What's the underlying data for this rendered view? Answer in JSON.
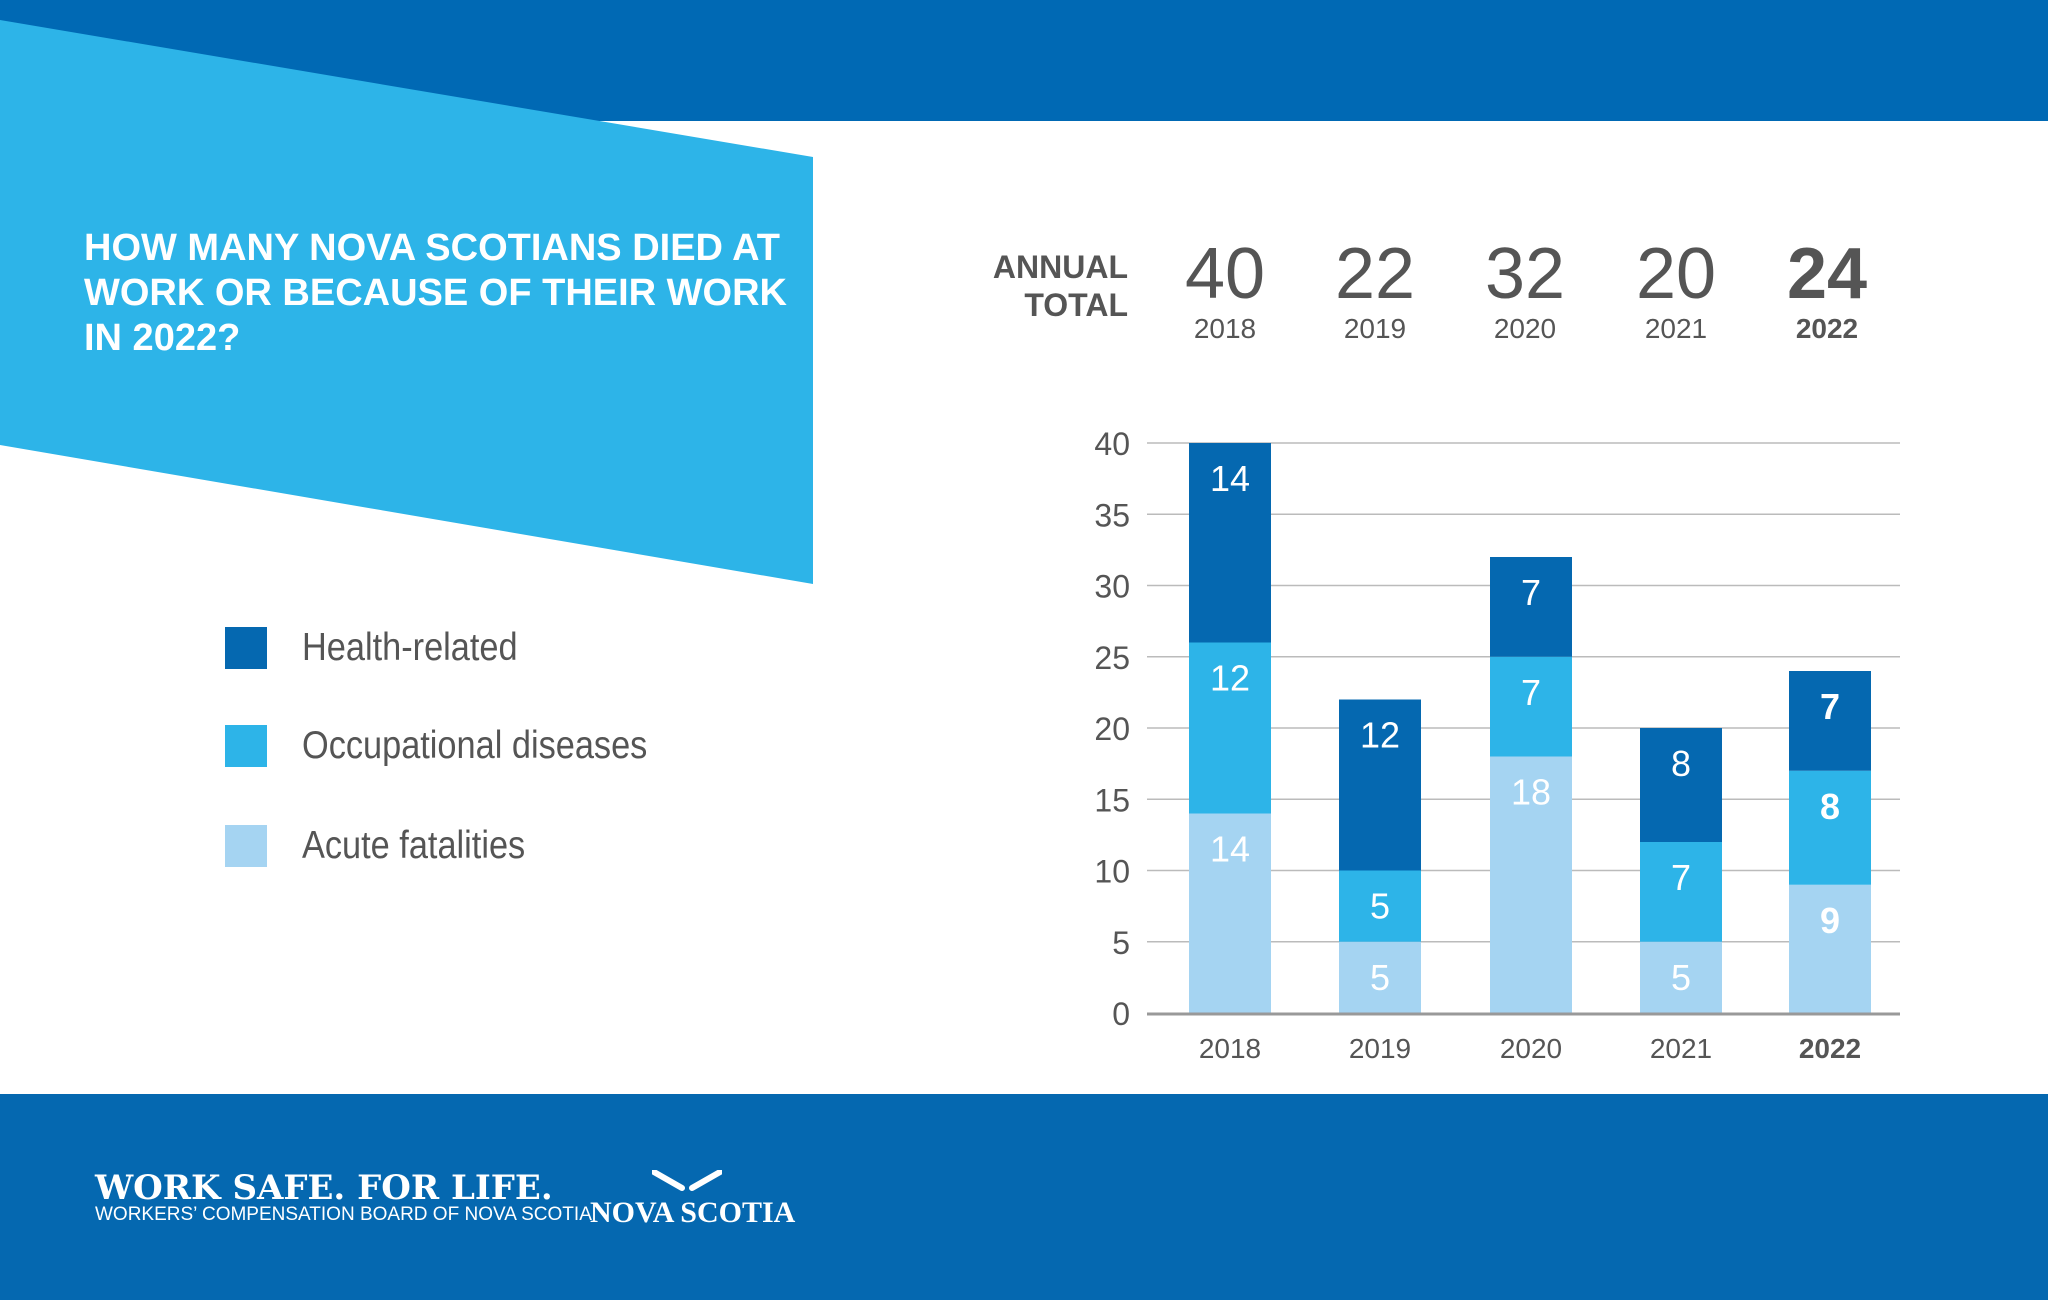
{
  "header": {
    "title": "HOW MANY NOVA SCOTIANS DIED AT WORK OR BECAUSE OF THEIR WORK IN 2022?"
  },
  "colors": {
    "top_bar": "#0069b4",
    "banner": "#2db4e8",
    "health": "#0568b0",
    "occupational": "#2db4e8",
    "acute": "#a5d4f2",
    "footer": "#0568b0"
  },
  "legend": [
    {
      "label": "Health-related",
      "color": "#0568b0"
    },
    {
      "label": "Occupational diseases",
      "color": "#2db4e8"
    },
    {
      "label": "Acute fatalities",
      "color": "#a5d4f2"
    }
  ],
  "annual_total": {
    "label_line1": "ANNUAL",
    "label_line2": "TOTAL",
    "items": [
      {
        "total": "40",
        "year": "2018"
      },
      {
        "total": "22",
        "year": "2019"
      },
      {
        "total": "32",
        "year": "2020"
      },
      {
        "total": "20",
        "year": "2021"
      },
      {
        "total": "24",
        "year": "2022"
      }
    ]
  },
  "chart_data": {
    "type": "bar",
    "stacked": true,
    "categories": [
      "2018",
      "2019",
      "2020",
      "2021",
      "2022"
    ],
    "series": [
      {
        "name": "Acute fatalities",
        "color": "#a5d4f2",
        "values": [
          14,
          5,
          18,
          5,
          9
        ]
      },
      {
        "name": "Occupational diseases",
        "color": "#2db4e8",
        "values": [
          12,
          5,
          7,
          7,
          8
        ]
      },
      {
        "name": "Health-related",
        "color": "#0568b0",
        "values": [
          14,
          12,
          7,
          8,
          7
        ]
      }
    ],
    "ylim": [
      0,
      40
    ],
    "yticks": [
      0,
      5,
      10,
      15,
      20,
      25,
      30,
      35,
      40
    ],
    "grid": true,
    "legend": "left",
    "highlight": "2022"
  },
  "footer": {
    "slogan": "WORK SAFE. FOR LIFE.",
    "org": "WORKERS’ COMPENSATION BOARD OF NOVA SCOTIA",
    "logo_text": "NOVA SCOTIA"
  }
}
